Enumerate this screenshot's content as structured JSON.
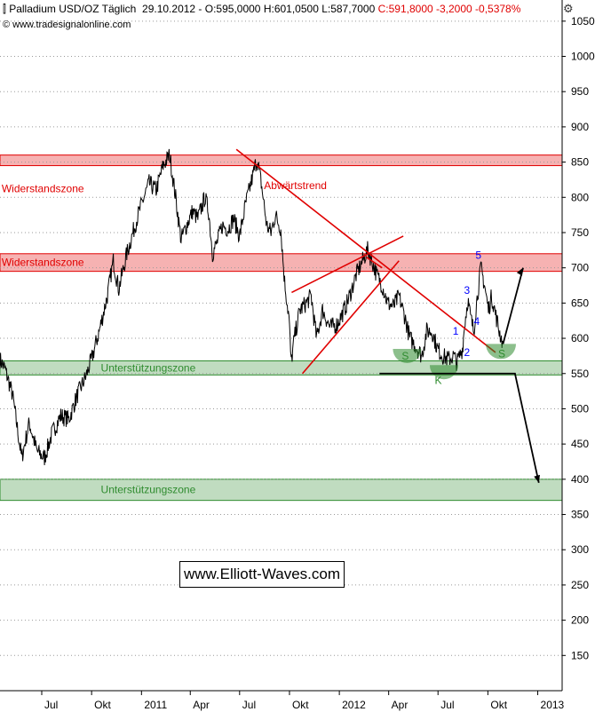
{
  "header": {
    "icon": "candlestick-chart-icon",
    "title": "Palladium USD/OZ Täglich",
    "date": "29.10.2012",
    "ohl": "O:595,0000 H:601,0500 L:587,7000",
    "change": "C:591,8000 -3,2000 -0,5378%",
    "source": "© www.tradesignalonline.com",
    "settings_icon": "gear-icon",
    "change_color": "#e00000"
  },
  "watermark": "www.Elliott-Waves.com",
  "chart_data": {
    "type": "line",
    "title": "Palladium USD/OZ Täglich",
    "xlabel": "",
    "ylabel": "",
    "ylim": [
      100,
      1080
    ],
    "y_ticks": [
      150,
      200,
      250,
      300,
      350,
      400,
      450,
      500,
      550,
      600,
      650,
      700,
      750,
      800,
      850,
      900,
      950,
      1000,
      1050
    ],
    "x_range": [
      "2010-04-15",
      "2013-02-15"
    ],
    "x_ticks": [
      {
        "label": "Jul",
        "date": "2010-07-01"
      },
      {
        "label": "Okt",
        "date": "2010-10-01"
      },
      {
        "label": "2011",
        "date": "2011-01-01"
      },
      {
        "label": "Apr",
        "date": "2011-04-01"
      },
      {
        "label": "Jul",
        "date": "2011-07-01"
      },
      {
        "label": "Okt",
        "date": "2011-10-01"
      },
      {
        "label": "2012",
        "date": "2012-01-01"
      },
      {
        "label": "Apr",
        "date": "2012-04-01"
      },
      {
        "label": "Jul",
        "date": "2012-07-01"
      },
      {
        "label": "Okt",
        "date": "2012-10-01"
      },
      {
        "label": "2013",
        "date": "2013-01-01"
      }
    ],
    "grid": true,
    "y_axis_side": "right",
    "series": [
      {
        "color": "#000000",
        "points": [
          [
            "2010-04-15",
            570
          ],
          [
            "2010-04-25",
            555
          ],
          [
            "2010-05-08",
            520
          ],
          [
            "2010-05-25",
            430
          ],
          [
            "2010-06-08",
            480
          ],
          [
            "2010-06-22",
            440
          ],
          [
            "2010-07-06",
            430
          ],
          [
            "2010-07-20",
            465
          ],
          [
            "2010-08-05",
            490
          ],
          [
            "2010-08-20",
            485
          ],
          [
            "2010-09-05",
            520
          ],
          [
            "2010-09-20",
            545
          ],
          [
            "2010-10-01",
            570
          ],
          [
            "2010-10-15",
            610
          ],
          [
            "2010-10-30",
            660
          ],
          [
            "2010-11-10",
            710
          ],
          [
            "2010-11-20",
            670
          ],
          [
            "2010-12-05",
            720
          ],
          [
            "2010-12-20",
            760
          ],
          [
            "2011-01-01",
            790
          ],
          [
            "2011-01-15",
            820
          ],
          [
            "2011-01-28",
            810
          ],
          [
            "2011-02-10",
            845
          ],
          [
            "2011-02-22",
            860
          ],
          [
            "2011-03-05",
            800
          ],
          [
            "2011-03-15",
            740
          ],
          [
            "2011-03-25",
            760
          ],
          [
            "2011-04-05",
            780
          ],
          [
            "2011-04-15",
            770
          ],
          [
            "2011-04-28",
            800
          ],
          [
            "2011-05-05",
            780
          ],
          [
            "2011-05-12",
            720
          ],
          [
            "2011-05-20",
            735
          ],
          [
            "2011-05-30",
            760
          ],
          [
            "2011-06-10",
            755
          ],
          [
            "2011-06-20",
            770
          ],
          [
            "2011-07-01",
            745
          ],
          [
            "2011-07-12",
            790
          ],
          [
            "2011-07-22",
            820
          ],
          [
            "2011-08-02",
            855
          ],
          [
            "2011-08-10",
            820
          ],
          [
            "2011-08-20",
            760
          ],
          [
            "2011-08-28",
            750
          ],
          [
            "2011-09-05",
            775
          ],
          [
            "2011-09-15",
            755
          ],
          [
            "2011-09-22",
            680
          ],
          [
            "2011-09-30",
            630
          ],
          [
            "2011-10-04",
            565
          ],
          [
            "2011-10-10",
            600
          ],
          [
            "2011-10-20",
            640
          ],
          [
            "2011-11-01",
            650
          ],
          [
            "2011-11-10",
            660
          ],
          [
            "2011-11-20",
            600
          ],
          [
            "2011-12-01",
            640
          ],
          [
            "2011-12-15",
            615
          ],
          [
            "2011-12-28",
            620
          ],
          [
            "2012-01-10",
            640
          ],
          [
            "2012-01-20",
            660
          ],
          [
            "2012-02-01",
            690
          ],
          [
            "2012-02-10",
            705
          ],
          [
            "2012-02-22",
            725
          ],
          [
            "2012-03-01",
            710
          ],
          [
            "2012-03-10",
            690
          ],
          [
            "2012-03-20",
            675
          ],
          [
            "2012-03-30",
            650
          ],
          [
            "2012-04-10",
            645
          ],
          [
            "2012-04-20",
            660
          ],
          [
            "2012-05-01",
            630
          ],
          [
            "2012-05-10",
            600
          ],
          [
            "2012-05-20",
            590
          ],
          [
            "2012-06-01",
            575
          ],
          [
            "2012-06-10",
            610
          ],
          [
            "2012-06-20",
            610
          ],
          [
            "2012-06-30",
            585
          ],
          [
            "2012-07-10",
            575
          ],
          [
            "2012-07-20",
            570
          ],
          [
            "2012-07-30",
            575
          ],
          [
            "2012-08-05",
            565
          ],
          [
            "2012-08-15",
            585
          ],
          [
            "2012-08-20",
            625
          ],
          [
            "2012-08-25",
            655
          ],
          [
            "2012-08-30",
            630
          ],
          [
            "2012-09-05",
            610
          ],
          [
            "2012-09-10",
            650
          ],
          [
            "2012-09-18",
            700
          ],
          [
            "2012-09-25",
            675
          ],
          [
            "2012-10-02",
            640
          ],
          [
            "2012-10-08",
            660
          ],
          [
            "2012-10-15",
            635
          ],
          [
            "2012-10-22",
            610
          ],
          [
            "2012-10-29",
            592
          ]
        ]
      }
    ],
    "zones": [
      {
        "label": "Widerstandszone",
        "from": 845,
        "to": 860,
        "color": "#e00000"
      },
      {
        "label": "Widerstandszone",
        "from": 695,
        "to": 720,
        "color": "#e00000"
      },
      {
        "label": "Unterstützungszone",
        "from": 548,
        "to": 568,
        "color": "#2e8b2e"
      },
      {
        "label": "Unterstützungszone",
        "from": 370,
        "to": 400,
        "color": "#2e8b2e"
      }
    ],
    "annotations": [
      {
        "text": "Abwärtstrend",
        "color": "#e00000"
      },
      {
        "text": "1",
        "color": "#0000ff"
      },
      {
        "text": "2",
        "color": "#0000ff"
      },
      {
        "text": "3",
        "color": "#0000ff"
      },
      {
        "text": "4",
        "color": "#0000ff"
      },
      {
        "text": "5",
        "color": "#0000ff"
      },
      {
        "text": "S",
        "color": "#2e8b2e"
      },
      {
        "text": "K",
        "color": "#2e8b2e"
      },
      {
        "text": "S",
        "color": "#2e8b2e"
      }
    ]
  }
}
